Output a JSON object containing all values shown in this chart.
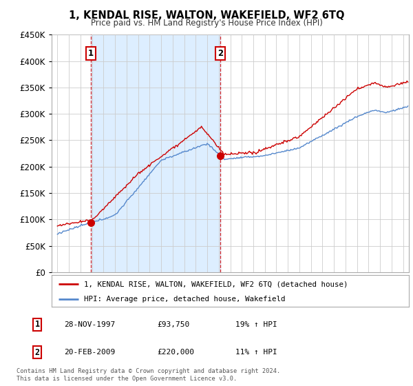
{
  "title": "1, KENDAL RISE, WALTON, WAKEFIELD, WF2 6TQ",
  "subtitle": "Price paid vs. HM Land Registry's House Price Index (HPI)",
  "legend_line1": "1, KENDAL RISE, WALTON, WAKEFIELD, WF2 6TQ (detached house)",
  "legend_line2": "HPI: Average price, detached house, Wakefield",
  "table_rows": [
    {
      "num": "1",
      "date": "28-NOV-1997",
      "price": "£93,750",
      "hpi": "19% ↑ HPI"
    },
    {
      "num": "2",
      "date": "20-FEB-2009",
      "price": "£220,000",
      "hpi": "11% ↑ HPI"
    }
  ],
  "footer": "Contains HM Land Registry data © Crown copyright and database right 2024.\nThis data is licensed under the Open Government Licence v3.0.",
  "sale1_year": 1997.91,
  "sale1_price": 93750,
  "sale2_year": 2009.13,
  "sale2_price": 220000,
  "hpi_color": "#5588cc",
  "price_color": "#cc0000",
  "dashed_color": "#cc0000",
  "shade_color": "#ddeeff",
  "ylim": [
    0,
    450000
  ],
  "yticks": [
    0,
    50000,
    100000,
    150000,
    200000,
    250000,
    300000,
    350000,
    400000,
    450000
  ],
  "xlim_start": 1994.5,
  "xlim_end": 2025.5,
  "background_color": "#ffffff",
  "grid_color": "#cccccc"
}
